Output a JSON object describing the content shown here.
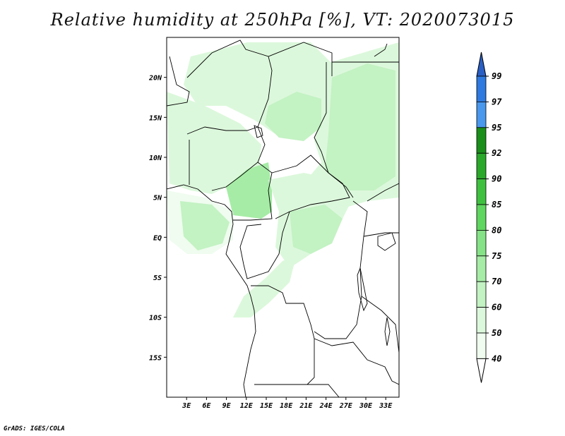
{
  "title": "Relative humidity at 250hPa [%], VT: 2020073015",
  "footer": "GrADS: IGES/COLA",
  "map": {
    "lon_range": [
      0,
      35
    ],
    "lat_range": [
      -20,
      25
    ],
    "x_ticks": [
      "3E",
      "6E",
      "9E",
      "12E",
      "15E",
      "18E",
      "21E",
      "24E",
      "27E",
      "30E",
      "33E"
    ],
    "y_ticks": [
      "20N",
      "15N",
      "10N",
      "5N",
      "EQ",
      "5S",
      "10S",
      "15S"
    ]
  },
  "colorbar": {
    "levels": [
      "99",
      "97",
      "95",
      "92",
      "90",
      "85",
      "80",
      "75",
      "70",
      "60",
      "50",
      "40"
    ],
    "colors": [
      "#2a5fc4",
      "#2e7ae0",
      "#4a98ee",
      "#1a8f1a",
      "#2aa82a",
      "#3fc13f",
      "#5fd65f",
      "#86e286",
      "#a6eca6",
      "#c3f2c3",
      "#dcf8dc",
      "#effcef"
    ],
    "top_color": "#2a5fc4",
    "bottom_color": "#ffffff"
  }
}
